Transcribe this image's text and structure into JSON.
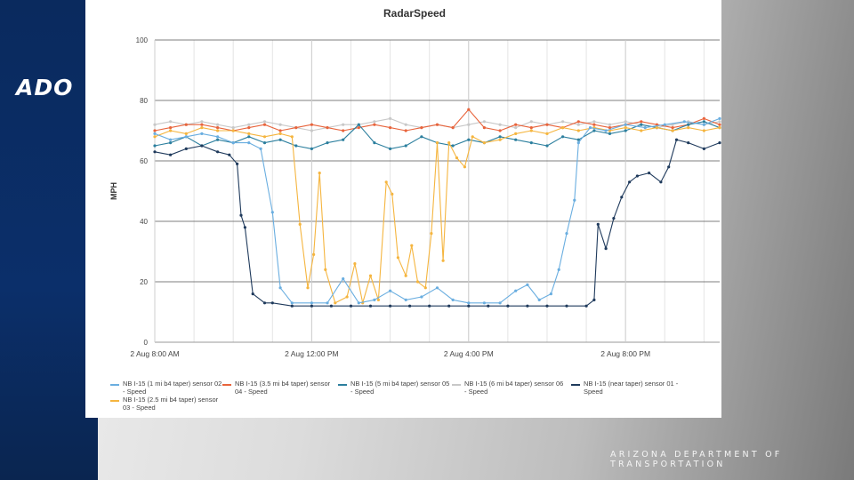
{
  "slide": {
    "logo_text": "ADO",
    "footer": "ARIZONA DEPARTMENT OF TRANSPORTATION"
  },
  "chart_data": {
    "type": "line",
    "title": "RadarSpeed",
    "xlabel": "",
    "ylabel": "MPH",
    "ylim": [
      0,
      100
    ],
    "yticks": [
      0,
      20,
      40,
      60,
      80,
      100
    ],
    "x_range_hours": [
      6.0,
      20.4
    ],
    "xticks": [
      {
        "hour": 6,
        "label": "2 Aug 8:00 AM"
      },
      {
        "hour": 10,
        "label": "2 Aug 12:00 PM"
      },
      {
        "hour": 14,
        "label": "2 Aug 4:00 PM"
      },
      {
        "hour": 18,
        "label": "2 Aug 8:00 PM"
      }
    ],
    "series": [
      {
        "name": "NB I-15 (1 mi b4 taper) sensor 02 - Speed",
        "color": "#6aaee0",
        "points": [
          [
            6.0,
            69
          ],
          [
            6.4,
            67
          ],
          [
            6.8,
            68
          ],
          [
            7.2,
            69
          ],
          [
            7.6,
            68
          ],
          [
            8.0,
            66
          ],
          [
            8.4,
            66
          ],
          [
            8.7,
            64
          ],
          [
            9.0,
            43
          ],
          [
            9.2,
            18
          ],
          [
            9.5,
            13
          ],
          [
            10.0,
            13
          ],
          [
            10.4,
            13
          ],
          [
            10.8,
            21
          ],
          [
            11.2,
            13
          ],
          [
            11.6,
            14
          ],
          [
            12.0,
            17
          ],
          [
            12.4,
            14
          ],
          [
            12.8,
            15
          ],
          [
            13.2,
            18
          ],
          [
            13.6,
            14
          ],
          [
            14.0,
            13
          ],
          [
            14.4,
            13
          ],
          [
            14.8,
            13
          ],
          [
            15.2,
            17
          ],
          [
            15.5,
            19
          ],
          [
            15.8,
            14
          ],
          [
            16.1,
            16
          ],
          [
            16.3,
            24
          ],
          [
            16.5,
            36
          ],
          [
            16.7,
            47
          ],
          [
            16.8,
            66
          ],
          [
            17.1,
            71
          ],
          [
            17.5,
            70
          ],
          [
            18.0,
            72
          ],
          [
            18.5,
            71
          ],
          [
            19.0,
            72
          ],
          [
            19.5,
            73
          ],
          [
            20.0,
            72
          ],
          [
            20.4,
            74
          ]
        ]
      },
      {
        "name": "NB I-15 (3.5 mi b4 taper) sensor 04 - Speed",
        "color": "#e8643c",
        "points": [
          [
            6.0,
            70
          ],
          [
            6.4,
            71
          ],
          [
            6.8,
            72
          ],
          [
            7.2,
            72
          ],
          [
            7.6,
            71
          ],
          [
            8.0,
            70
          ],
          [
            8.4,
            71
          ],
          [
            8.8,
            72
          ],
          [
            9.2,
            70
          ],
          [
            9.6,
            71
          ],
          [
            10.0,
            72
          ],
          [
            10.4,
            71
          ],
          [
            10.8,
            70
          ],
          [
            11.2,
            71
          ],
          [
            11.6,
            72
          ],
          [
            12.0,
            71
          ],
          [
            12.4,
            70
          ],
          [
            12.8,
            71
          ],
          [
            13.2,
            72
          ],
          [
            13.6,
            71
          ],
          [
            14.0,
            77
          ],
          [
            14.4,
            71
          ],
          [
            14.8,
            70
          ],
          [
            15.2,
            72
          ],
          [
            15.6,
            71
          ],
          [
            16.0,
            72
          ],
          [
            16.4,
            71
          ],
          [
            16.8,
            73
          ],
          [
            17.2,
            72
          ],
          [
            17.6,
            71
          ],
          [
            18.0,
            72
          ],
          [
            18.4,
            73
          ],
          [
            18.8,
            72
          ],
          [
            19.2,
            71
          ],
          [
            19.6,
            72
          ],
          [
            20.0,
            74
          ],
          [
            20.4,
            72
          ]
        ]
      },
      {
        "name": "NB I-15 (5 mi b4 taper) sensor 05 - Speed",
        "color": "#2c7f9e",
        "points": [
          [
            6.0,
            65
          ],
          [
            6.4,
            66
          ],
          [
            6.8,
            68
          ],
          [
            7.2,
            65
          ],
          [
            7.6,
            67
          ],
          [
            8.0,
            66
          ],
          [
            8.4,
            68
          ],
          [
            8.8,
            66
          ],
          [
            9.2,
            67
          ],
          [
            9.6,
            65
          ],
          [
            10.0,
            64
          ],
          [
            10.4,
            66
          ],
          [
            10.8,
            67
          ],
          [
            11.2,
            72
          ],
          [
            11.6,
            66
          ],
          [
            12.0,
            64
          ],
          [
            12.4,
            65
          ],
          [
            12.8,
            68
          ],
          [
            13.2,
            66
          ],
          [
            13.6,
            65
          ],
          [
            14.0,
            67
          ],
          [
            14.4,
            66
          ],
          [
            14.8,
            68
          ],
          [
            15.2,
            67
          ],
          [
            15.6,
            66
          ],
          [
            16.0,
            65
          ],
          [
            16.4,
            68
          ],
          [
            16.8,
            67
          ],
          [
            17.2,
            70
          ],
          [
            17.6,
            69
          ],
          [
            18.0,
            70
          ],
          [
            18.4,
            72
          ],
          [
            18.8,
            71
          ],
          [
            19.2,
            70
          ],
          [
            19.6,
            72
          ],
          [
            20.0,
            73
          ],
          [
            20.4,
            71
          ]
        ]
      },
      {
        "name": "NB I-15 (6 mi b4 taper) sensor 06 - Speed",
        "color": "#c8c8c8",
        "points": [
          [
            6.0,
            72
          ],
          [
            6.4,
            73
          ],
          [
            6.8,
            72
          ],
          [
            7.2,
            73
          ],
          [
            7.6,
            72
          ],
          [
            8.0,
            71
          ],
          [
            8.4,
            72
          ],
          [
            8.8,
            73
          ],
          [
            9.2,
            72
          ],
          [
            9.6,
            71
          ],
          [
            10.0,
            70
          ],
          [
            10.4,
            71
          ],
          [
            10.8,
            72
          ],
          [
            11.2,
            72
          ],
          [
            11.6,
            73
          ],
          [
            12.0,
            74
          ],
          [
            12.4,
            72
          ],
          [
            12.8,
            71
          ],
          [
            13.2,
            72
          ],
          [
            13.6,
            71
          ],
          [
            14.0,
            72
          ],
          [
            14.4,
            73
          ],
          [
            14.8,
            72
          ],
          [
            15.2,
            71
          ],
          [
            15.6,
            73
          ],
          [
            16.0,
            72
          ],
          [
            16.4,
            73
          ],
          [
            16.8,
            72
          ],
          [
            17.2,
            73
          ],
          [
            17.6,
            72
          ],
          [
            18.0,
            73
          ],
          [
            18.4,
            72
          ],
          [
            18.8,
            71
          ],
          [
            19.2,
            72
          ],
          [
            19.6,
            73
          ],
          [
            20.0,
            72
          ],
          [
            20.4,
            73
          ]
        ]
      },
      {
        "name": "NB I-15 (near taper) sensor 01 - Speed",
        "color": "#1f3a5c",
        "points": [
          [
            6.0,
            63
          ],
          [
            6.4,
            62
          ],
          [
            6.8,
            64
          ],
          [
            7.2,
            65
          ],
          [
            7.6,
            63
          ],
          [
            7.9,
            62
          ],
          [
            8.1,
            59
          ],
          [
            8.2,
            42
          ],
          [
            8.3,
            38
          ],
          [
            8.5,
            16
          ],
          [
            8.8,
            13
          ],
          [
            9.0,
            13
          ],
          [
            9.5,
            12
          ],
          [
            10.0,
            12
          ],
          [
            10.5,
            12
          ],
          [
            11.0,
            12
          ],
          [
            11.5,
            12
          ],
          [
            12.0,
            12
          ],
          [
            12.5,
            12
          ],
          [
            13.0,
            12
          ],
          [
            13.5,
            12
          ],
          [
            14.0,
            12
          ],
          [
            14.5,
            12
          ],
          [
            15.0,
            12
          ],
          [
            15.5,
            12
          ],
          [
            16.0,
            12
          ],
          [
            16.5,
            12
          ],
          [
            17.0,
            12
          ],
          [
            17.2,
            14
          ],
          [
            17.3,
            39
          ],
          [
            17.5,
            31
          ],
          [
            17.7,
            41
          ],
          [
            17.9,
            48
          ],
          [
            18.1,
            53
          ],
          [
            18.3,
            55
          ],
          [
            18.6,
            56
          ],
          [
            18.9,
            53
          ],
          [
            19.1,
            58
          ],
          [
            19.3,
            67
          ],
          [
            19.6,
            66
          ],
          [
            20.0,
            64
          ],
          [
            20.4,
            66
          ]
        ]
      },
      {
        "name": "NB I-15 (2.5 mi b4 taper) sensor 03 - Speed",
        "color": "#f5b53f",
        "points": [
          [
            6.0,
            68
          ],
          [
            6.4,
            70
          ],
          [
            6.8,
            69
          ],
          [
            7.2,
            71
          ],
          [
            7.6,
            70
          ],
          [
            8.0,
            70
          ],
          [
            8.4,
            69
          ],
          [
            8.8,
            68
          ],
          [
            9.2,
            69
          ],
          [
            9.5,
            68
          ],
          [
            9.7,
            39
          ],
          [
            9.9,
            18
          ],
          [
            10.05,
            29
          ],
          [
            10.2,
            56
          ],
          [
            10.35,
            24
          ],
          [
            10.6,
            13
          ],
          [
            10.9,
            15
          ],
          [
            11.1,
            26
          ],
          [
            11.3,
            13
          ],
          [
            11.5,
            22
          ],
          [
            11.7,
            14
          ],
          [
            11.9,
            53
          ],
          [
            12.05,
            49
          ],
          [
            12.2,
            28
          ],
          [
            12.4,
            22
          ],
          [
            12.55,
            32
          ],
          [
            12.7,
            20
          ],
          [
            12.9,
            18
          ],
          [
            13.05,
            36
          ],
          [
            13.2,
            66
          ],
          [
            13.35,
            27
          ],
          [
            13.5,
            66
          ],
          [
            13.7,
            61
          ],
          [
            13.9,
            58
          ],
          [
            14.1,
            68
          ],
          [
            14.4,
            66
          ],
          [
            14.8,
            67
          ],
          [
            15.2,
            69
          ],
          [
            15.6,
            70
          ],
          [
            16.0,
            69
          ],
          [
            16.4,
            71
          ],
          [
            16.8,
            70
          ],
          [
            17.2,
            71
          ],
          [
            17.6,
            70
          ],
          [
            18.0,
            71
          ],
          [
            18.4,
            70
          ],
          [
            18.8,
            71
          ],
          [
            19.2,
            70
          ],
          [
            19.6,
            71
          ],
          [
            20.0,
            70
          ],
          [
            20.4,
            71
          ]
        ]
      }
    ],
    "legend_order": [
      0,
      1,
      2,
      3,
      4,
      5
    ],
    "legend_position": "bottom"
  }
}
